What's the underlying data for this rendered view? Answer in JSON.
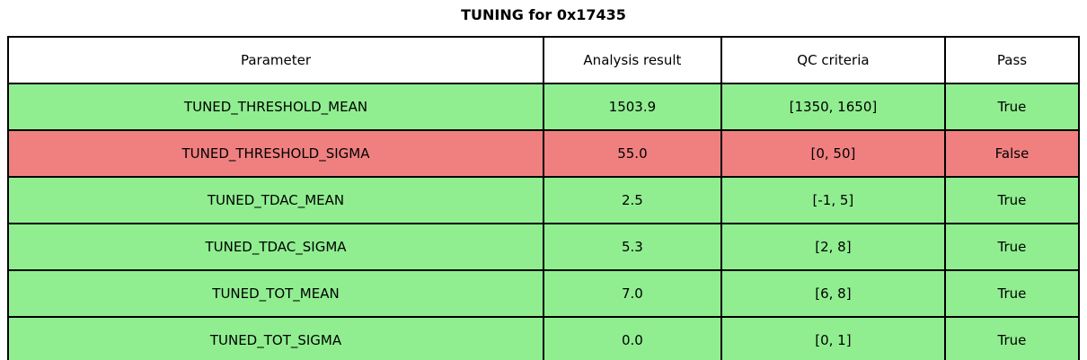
{
  "chart_data": {
    "type": "table",
    "title": "TUNING for 0x17435",
    "columns": [
      "Parameter",
      "Analysis result",
      "QC criteria",
      "Pass"
    ],
    "rows": [
      {
        "parameter": "TUNED_THRESHOLD_MEAN",
        "analysis_result": "1503.9",
        "qc_criteria": "[1350, 1650]",
        "pass": "True",
        "status": "pass"
      },
      {
        "parameter": "TUNED_THRESHOLD_SIGMA",
        "analysis_result": "55.0",
        "qc_criteria": "[0, 50]",
        "pass": "False",
        "status": "fail"
      },
      {
        "parameter": "TUNED_TDAC_MEAN",
        "analysis_result": "2.5",
        "qc_criteria": "[-1, 5]",
        "pass": "True",
        "status": "pass"
      },
      {
        "parameter": "TUNED_TDAC_SIGMA",
        "analysis_result": "5.3",
        "qc_criteria": "[2, 8]",
        "pass": "True",
        "status": "pass"
      },
      {
        "parameter": "TUNED_TOT_MEAN",
        "analysis_result": "7.0",
        "qc_criteria": "[6, 8]",
        "pass": "True",
        "status": "pass"
      },
      {
        "parameter": "TUNED_TOT_SIGMA",
        "analysis_result": "0.0",
        "qc_criteria": "[0, 1]",
        "pass": "True",
        "status": "pass"
      }
    ],
    "colors": {
      "pass_row": "#90ee90",
      "fail_row": "#f08080",
      "header_bg": "#ffffff",
      "border": "#000000",
      "text": "#000000"
    },
    "layout": {
      "legend": "none",
      "grid": "full-borders",
      "header_position": "top",
      "text_align": "center"
    }
  }
}
